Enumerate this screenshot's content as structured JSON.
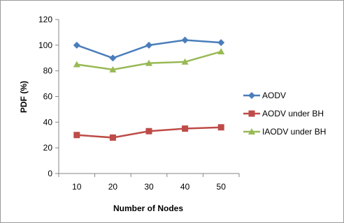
{
  "chart_data": {
    "type": "line",
    "title": "",
    "xlabel": "Number of Nodes",
    "ylabel": "PDF (%)",
    "categories": [
      "10",
      "20",
      "30",
      "40",
      "50"
    ],
    "ylim": [
      0,
      120
    ],
    "yticks": [
      "0",
      "20",
      "40",
      "60",
      "80",
      "100",
      "120"
    ],
    "grid": false,
    "legend_position": "right",
    "series": [
      {
        "name": "AODV",
        "values": [
          100,
          90,
          100,
          104,
          102
        ],
        "color": "#4a7ebb",
        "marker": "diamond"
      },
      {
        "name": "AODV under BH",
        "values": [
          30,
          28,
          33,
          35,
          36
        ],
        "color": "#be4b48",
        "marker": "square"
      },
      {
        "name": "IAODV under BH",
        "values": [
          85,
          81,
          86,
          87,
          95
        ],
        "color": "#98b954",
        "marker": "triangle"
      }
    ]
  }
}
